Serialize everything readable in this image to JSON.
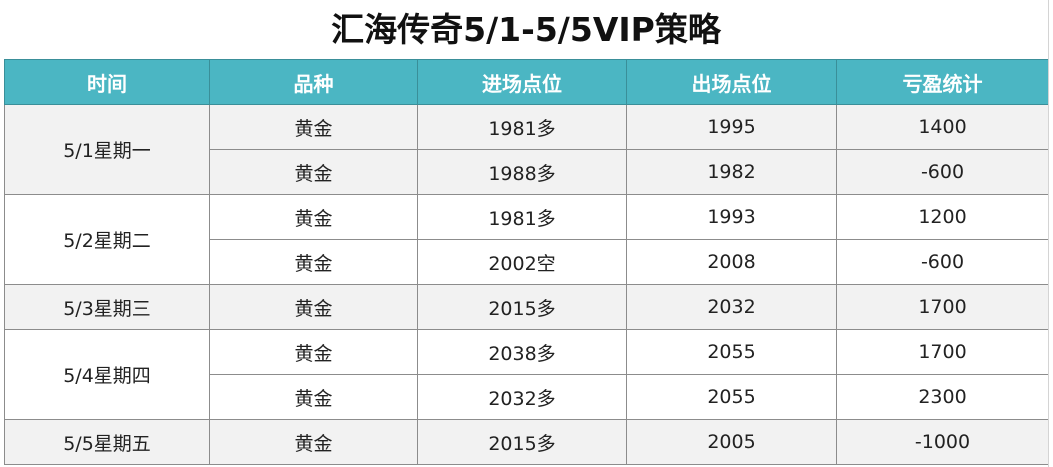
{
  "title": "汇海传奇5/1-5/5VIP策略",
  "table": {
    "headers": [
      "时间",
      "品种",
      "进场点位",
      "出场点位",
      "亏盈统计"
    ],
    "days": [
      {
        "date": "5/1星期一",
        "rows": [
          {
            "product": "黄金",
            "entry": "1981多",
            "exit": "1995",
            "pnl": "1400"
          },
          {
            "product": "黄金",
            "entry": "1988多",
            "exit": "1982",
            "pnl": "-600"
          }
        ]
      },
      {
        "date": "5/2星期二",
        "rows": [
          {
            "product": "黄金",
            "entry": "1981多",
            "exit": "1993",
            "pnl": "1200"
          },
          {
            "product": "黄金",
            "entry": "2002空",
            "exit": "2008",
            "pnl": "-600"
          }
        ]
      },
      {
        "date": "5/3星期三",
        "rows": [
          {
            "product": "黄金",
            "entry": "2015多",
            "exit": "2032",
            "pnl": "1700"
          }
        ]
      },
      {
        "date": "5/4星期四",
        "rows": [
          {
            "product": "黄金",
            "entry": "2038多",
            "exit": "2055",
            "pnl": "1700"
          },
          {
            "product": "黄金",
            "entry": "2032多",
            "exit": "2055",
            "pnl": "2300"
          }
        ]
      },
      {
        "date": "5/5星期五",
        "rows": [
          {
            "product": "黄金",
            "entry": "2015多",
            "exit": "2005",
            "pnl": "-1000"
          }
        ]
      }
    ]
  },
  "colors": {
    "header_bg": "#4bb6c3",
    "header_text": "#ffffff",
    "row_shade": "#f2f2f2",
    "row_plain": "#ffffff"
  }
}
